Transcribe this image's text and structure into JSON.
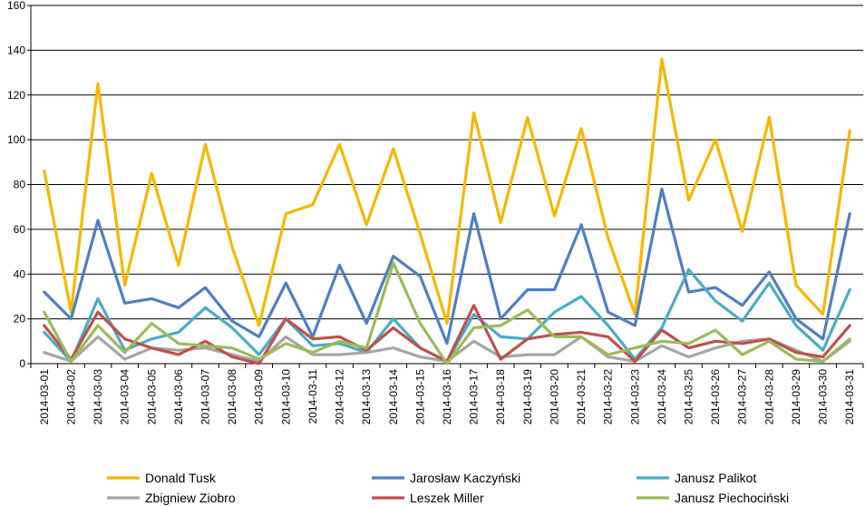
{
  "chart_data": {
    "type": "line",
    "title": "",
    "xlabel": "",
    "ylabel": "",
    "ylim": [
      0,
      160
    ],
    "yticks": [
      0,
      20,
      40,
      60,
      80,
      100,
      120,
      140,
      160
    ],
    "grid": "horizontal",
    "legend_position": "bottom",
    "x": [
      "2014-03-01",
      "2014-03-02",
      "2014-03-03",
      "2014-03-04",
      "2014-03-05",
      "2014-03-06",
      "2014-03-07",
      "2014-03-08",
      "2014-03-09",
      "2014-03-10",
      "2014-03-11",
      "2014-03-12",
      "2014-03-13",
      "2014-03-14",
      "2014-03-15",
      "2014-03-16",
      "2014-03-17",
      "2014-03-18",
      "2014-03-19",
      "2014-03-20",
      "2014-03-21",
      "2014-03-22",
      "2014-03-23",
      "2014-03-24",
      "2014-03-25",
      "2014-03-26",
      "2014-03-27",
      "2014-03-28",
      "2014-03-29",
      "2014-03-30",
      "2014-03-31"
    ],
    "series": [
      {
        "name": "Donald Tusk",
        "color": "#f5b800",
        "values": [
          86,
          23,
          125,
          35,
          85,
          44,
          98,
          52,
          17,
          67,
          71,
          98,
          62,
          96,
          58,
          18,
          112,
          63,
          110,
          66,
          105,
          56,
          22,
          136,
          73,
          100,
          59,
          110,
          35,
          22,
          104
        ]
      },
      {
        "name": "Jarosław Kaczyński",
        "color": "#4f7fbf",
        "values": [
          32,
          20,
          64,
          27,
          29,
          25,
          34,
          19,
          12,
          36,
          12,
          44,
          18,
          48,
          39,
          9,
          67,
          20,
          33,
          33,
          62,
          23,
          17,
          78,
          32,
          34,
          26,
          41,
          20,
          11,
          67
        ]
      },
      {
        "name": "Janusz Palikot",
        "color": "#4aacc6",
        "values": [
          14,
          1,
          29,
          6,
          11,
          14,
          25,
          16,
          4,
          20,
          8,
          9,
          5,
          20,
          7,
          1,
          22,
          12,
          11,
          23,
          30,
          17,
          2,
          16,
          42,
          28,
          19,
          36,
          17,
          6,
          33
        ]
      },
      {
        "name": "Zbigniew Ziobro",
        "color": "#a6a6a6",
        "values": [
          5,
          1,
          12,
          2,
          7,
          6,
          7,
          4,
          1,
          12,
          4,
          4,
          5,
          7,
          3,
          1,
          10,
          3,
          4,
          4,
          12,
          3,
          1,
          8,
          3,
          7,
          10,
          11,
          6,
          1,
          10
        ]
      },
      {
        "name": "Leszek Miller",
        "color": "#c0504d",
        "values": [
          17,
          2,
          23,
          11,
          7,
          4,
          10,
          3,
          0,
          20,
          11,
          12,
          6,
          16,
          7,
          1,
          26,
          2,
          11,
          13,
          14,
          12,
          1,
          15,
          7,
          10,
          9,
          11,
          5,
          3,
          17
        ]
      },
      {
        "name": "Janusz Piechociński",
        "color": "#9bbb59",
        "values": [
          23,
          1,
          17,
          5,
          18,
          9,
          8,
          7,
          2,
          9,
          5,
          10,
          7,
          45,
          18,
          0,
          16,
          17,
          24,
          12,
          12,
          4,
          7,
          10,
          9,
          15,
          4,
          10,
          2,
          1,
          11
        ]
      }
    ]
  }
}
